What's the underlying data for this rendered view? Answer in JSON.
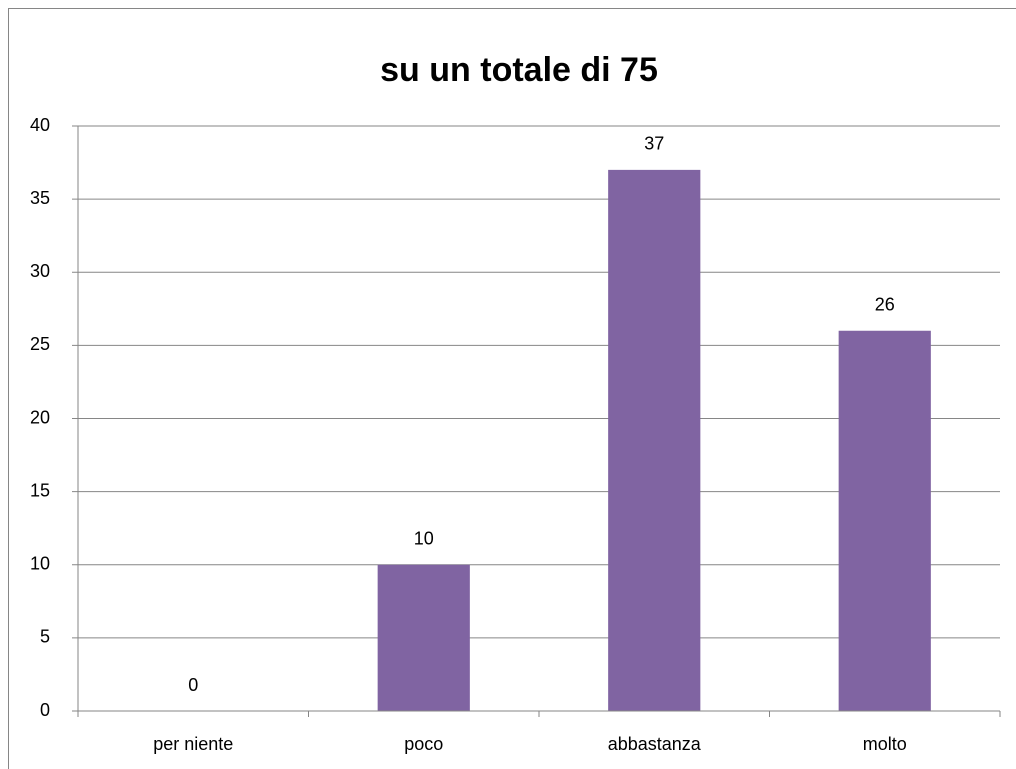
{
  "chart_data": {
    "type": "bar",
    "title": "su un totale di 75",
    "categories": [
      "per niente",
      "poco",
      "abbastanza",
      "molto"
    ],
    "values": [
      0,
      10,
      37,
      26
    ],
    "color": "#8064a2",
    "ylim": [
      0,
      40
    ],
    "yticks": [
      0,
      5,
      10,
      15,
      20,
      25,
      30,
      35,
      40
    ],
    "grid": true
  }
}
